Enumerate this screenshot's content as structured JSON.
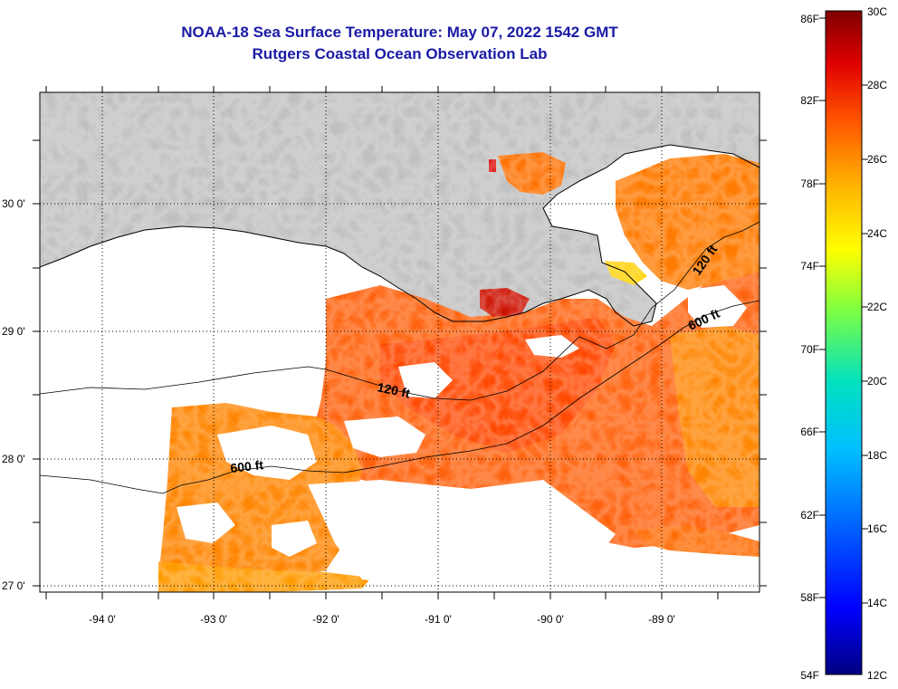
{
  "title": "NOAA-18 Sea Surface Temperature:  May 07, 2022 1542 GMT",
  "subtitle": "Rutgers Coastal Ocean Observation Lab",
  "lon_labels": [
    "-94 0'",
    "-93 0'",
    "-92 0'",
    "-91 0'",
    "-90 0'",
    "-89 0'"
  ],
  "lat_labels": [
    "30 0'",
    "29 0'",
    "28 0'",
    "27 0'"
  ],
  "contour_labels": [
    "120 ft",
    "600 ft",
    "120 ft",
    "600 ft"
  ],
  "colorbar": {
    "f_labels": [
      "86F",
      "82F",
      "78F",
      "74F",
      "70F",
      "66F",
      "62F",
      "58F",
      "54F"
    ],
    "c_labels": [
      "30C",
      "28C",
      "26C",
      "24C",
      "22C",
      "20C",
      "18C",
      "16C",
      "14C",
      "12C"
    ]
  },
  "colors": {
    "land": "#c0c0c0",
    "title": "#1a1aa6"
  }
}
